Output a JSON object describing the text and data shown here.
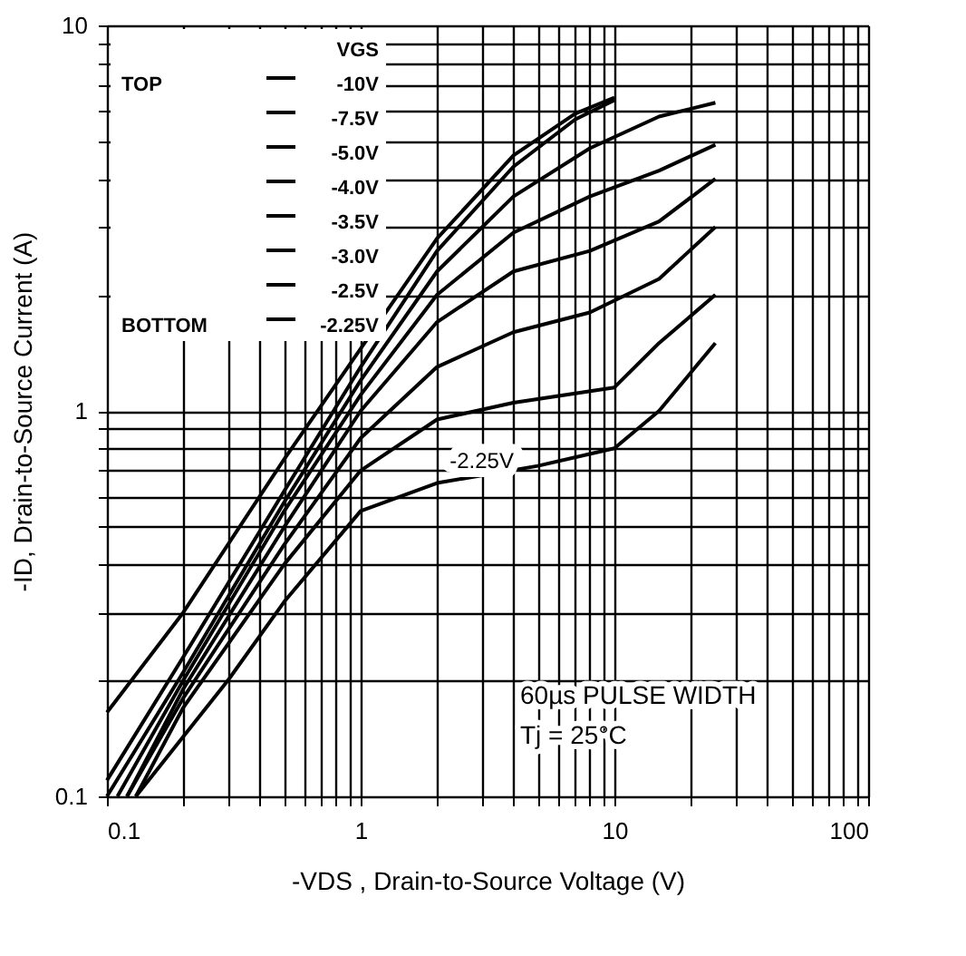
{
  "chart_data": {
    "type": "line",
    "xlabel": "-VDS , Drain-to-Source Voltage (V)",
    "ylabel": "-ID, Drain-to-Source Current (A)",
    "legend_title": "VGS",
    "legend": "top left",
    "log": "xy",
    "grid": true,
    "line_style": "solid",
    "marker": "none",
    "xlim": [
      0.1,
      100
    ],
    "ylim": [
      0.1,
      10
    ],
    "xticks": [
      0.1,
      {
        "value": 0.2,
        "label": null
      },
      {
        "value": 0.3,
        "label": null
      },
      {
        "value": 0.4,
        "label": null
      },
      {
        "value": 0.5,
        "label": null
      },
      {
        "value": 0.6,
        "label": null
      },
      {
        "value": 0.7,
        "label": null
      },
      {
        "value": 0.8,
        "label": null
      },
      {
        "value": 0.9,
        "label": null
      },
      1,
      {
        "value": 2,
        "label": null
      },
      {
        "value": 3,
        "label": null
      },
      {
        "value": 4,
        "label": null
      },
      {
        "value": 5,
        "label": null
      },
      {
        "value": 6,
        "label": null
      },
      {
        "value": 7,
        "label": null
      },
      {
        "value": 8,
        "label": null
      },
      {
        "value": 9,
        "label": null
      },
      10,
      {
        "value": 20,
        "label": null
      },
      {
        "value": 30,
        "label": null
      },
      {
        "value": 40,
        "label": null
      },
      {
        "value": 50,
        "label": null
      },
      {
        "value": 60,
        "label": null
      },
      {
        "value": 70,
        "label": null
      },
      {
        "value": 80,
        "label": null
      },
      {
        "value": 90,
        "label": null
      },
      100
    ],
    "yticks": [
      0.1,
      {
        "value": 0.2,
        "label": null
      },
      {
        "value": 0.3,
        "label": null
      },
      {
        "value": 0.4,
        "label": null
      },
      {
        "value": 0.5,
        "label": null
      },
      {
        "value": 0.6,
        "label": null
      },
      {
        "value": 0.7,
        "label": null
      },
      {
        "value": 0.8,
        "label": null
      },
      {
        "value": 0.9,
        "label": null
      },
      1,
      {
        "value": 2,
        "label": null
      },
      {
        "value": 3,
        "label": null
      },
      {
        "value": 4,
        "label": null
      },
      {
        "value": 5,
        "label": null
      },
      {
        "value": 6,
        "label": null
      },
      {
        "value": 7,
        "label": null
      },
      {
        "value": 8,
        "label": null
      },
      {
        "value": 9,
        "label": null
      },
      10
    ],
    "series": [
      {
        "name": "-10V",
        "color": "#000000",
        "x": [
          0.1,
          0.2,
          0.5,
          1,
          2,
          4,
          7,
          10
        ],
        "values": [
          0.165,
          0.3,
          0.75,
          1.45,
          2.8,
          4.6,
          5.9,
          6.5
        ]
      },
      {
        "name": "-7.5V",
        "color": "#000000",
        "x": [
          0.1,
          0.2,
          0.5,
          1,
          2,
          4,
          7,
          10
        ],
        "values": [
          0.11,
          0.23,
          0.62,
          1.3,
          2.6,
          4.3,
          5.7,
          6.4
        ]
      },
      {
        "name": "-5.0V",
        "color": "#000000",
        "x": [
          0.1,
          0.2,
          0.5,
          1,
          2,
          4,
          8,
          15,
          25
        ],
        "values": [
          0.1,
          0.21,
          0.58,
          1.2,
          2.3,
          3.6,
          4.8,
          5.8,
          6.3
        ]
      },
      {
        "name": "-4.0V",
        "color": "#000000",
        "x": [
          0.11,
          0.2,
          0.5,
          1,
          2,
          4,
          8,
          15,
          25
        ],
        "values": [
          0.1,
          0.2,
          0.55,
          1.1,
          2.0,
          2.9,
          3.6,
          4.2,
          4.9
        ]
      },
      {
        "name": "-3.5V",
        "color": "#000000",
        "x": [
          0.12,
          0.2,
          0.5,
          1,
          2,
          4,
          8,
          15,
          25
        ],
        "values": [
          0.1,
          0.19,
          0.5,
          1.0,
          1.7,
          2.3,
          2.6,
          3.1,
          4.0
        ]
      },
      {
        "name": "-3.0V",
        "color": "#000000",
        "x": [
          0.12,
          0.2,
          0.5,
          1,
          2,
          4,
          8,
          15,
          25
        ],
        "values": [
          0.1,
          0.18,
          0.45,
          0.85,
          1.3,
          1.6,
          1.8,
          2.2,
          3.0
        ]
      },
      {
        "name": "-2.5V",
        "color": "#000000",
        "x": [
          0.13,
          0.2,
          0.5,
          1,
          2,
          4,
          10,
          15,
          25
        ],
        "values": [
          0.1,
          0.17,
          0.4,
          0.7,
          0.95,
          1.05,
          1.15,
          1.5,
          2.0
        ]
      },
      {
        "name": "-2.25V",
        "color": "#000000",
        "x": [
          0.13,
          0.3,
          0.5,
          1,
          2,
          5,
          10,
          15,
          25
        ],
        "values": [
          0.1,
          0.2,
          0.32,
          0.55,
          0.65,
          0.72,
          0.8,
          1.0,
          1.5
        ]
      }
    ],
    "annotations": [
      "TOP",
      "BOTTOM",
      {
        "text": "-2.25V",
        "x": 3,
        "y": 0.68
      },
      "60µs PULSE WIDTH",
      "Tj = 25°C"
    ]
  }
}
